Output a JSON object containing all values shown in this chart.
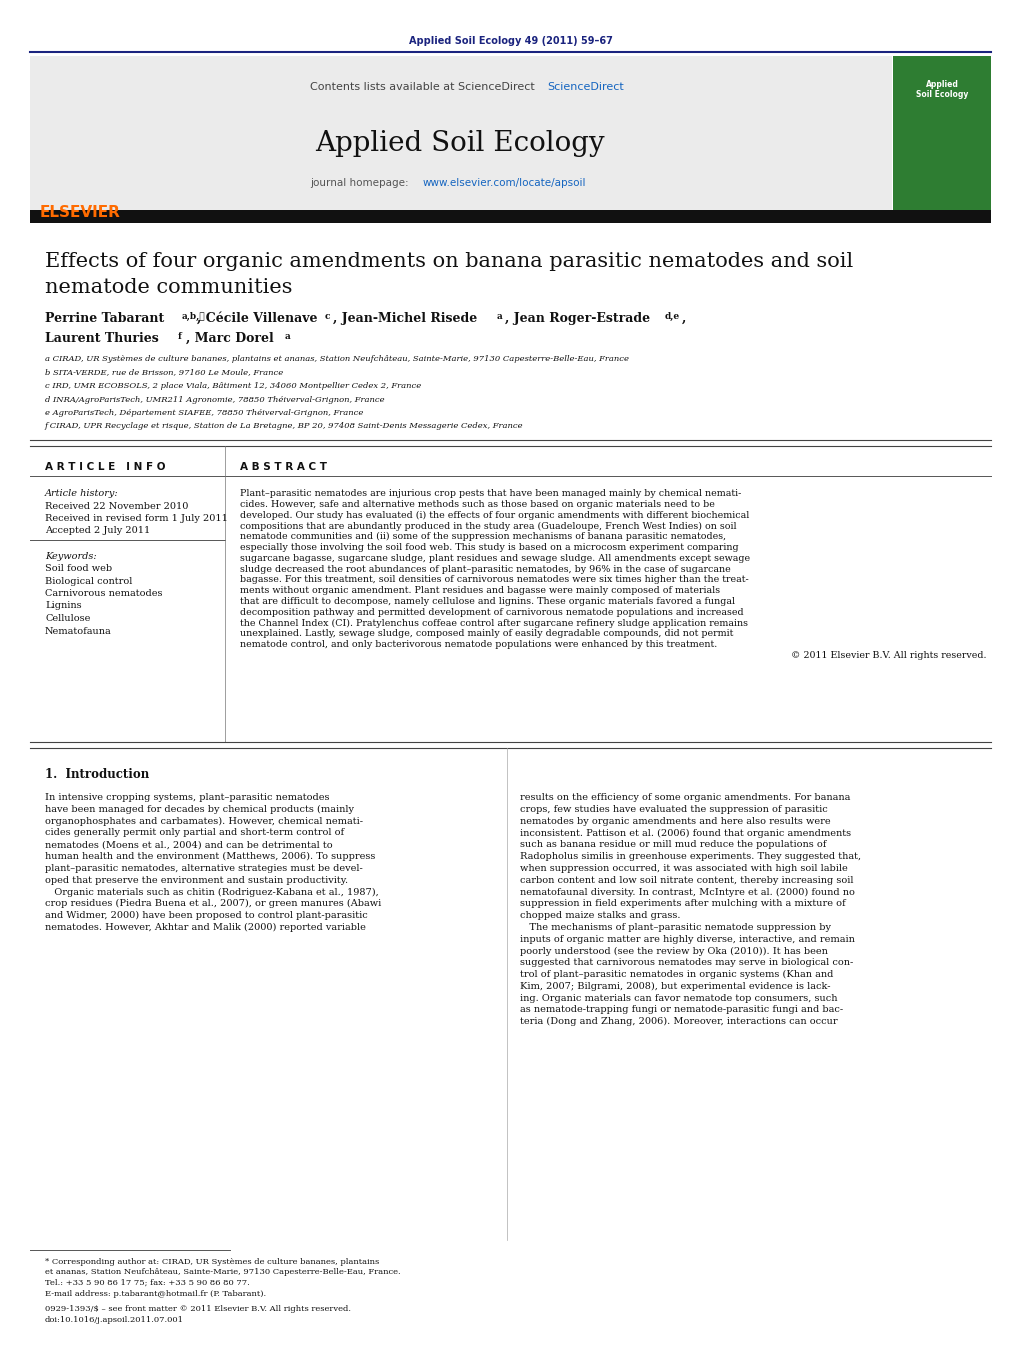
{
  "journal_ref": "Applied Soil Ecology 49 (2011) 59–67",
  "journal_name": "Applied Soil Ecology",
  "contents_text": "Contents lists available at ScienceDirect",
  "sciencedirect_text": "ScienceDirect",
  "homepage_label": "journal homepage: ",
  "homepage_url": "www.elsevier.com/locate/apsoil",
  "elsevier_color": "#FF6B00",
  "green_box_color": "#2E7D32",
  "affil_a": "a CIRAD, UR Systèmes de culture bananes, plantains et ananas, Station Neufchâteau, Sainte-Marie, 97130 Capesterre-Belle-Eau, France",
  "affil_b": "b SITA-VERDE, rue de Brisson, 97160 Le Moule, France",
  "affil_c": "c IRD, UMR ECOBSOLS, 2 place Viala, Bâtiment 12, 34060 Montpellier Cedex 2, France",
  "affil_d": "d INRA/AgroParisTech, UMR211 Agronomie, 78850 Théiverval-Grignon, France",
  "affil_e": "e AgroParisTech, Département SIAFEE, 78850 Théiverval-Grignon, France",
  "affil_f": "f CIRAD, UPR Recyclage et risque, Station de La Bretagne, BP 20, 97408 Saint-Denis Messagerie Cedex, France",
  "article_info_header": "A R T I C L E   I N F O",
  "abstract_header": "A B S T R A C T",
  "article_history_label": "Article history:",
  "received1": "Received 22 November 2010",
  "received2": "Received in revised form 1 July 2011",
  "accepted": "Accepted 2 July 2011",
  "keywords_label": "Keywords:",
  "keywords": [
    "Soil food web",
    "Biological control",
    "Carnivorous nematodes",
    "Lignins",
    "Cellulose",
    "Nematofauna"
  ],
  "abstract_lines": [
    "Plant–parasitic nematodes are injurious crop pests that have been managed mainly by chemical nemati-",
    "cides. However, safe and alternative methods such as those based on organic materials need to be",
    "developed. Our study has evaluated (i) the effects of four organic amendments with different biochemical",
    "compositions that are abundantly produced in the study area (Guadeloupe, French West Indies) on soil",
    "nematode communities and (ii) some of the suppression mechanisms of banana parasitic nematodes,",
    "especially those involving the soil food web. This study is based on a microcosm experiment comparing",
    "sugarcane bagasse, sugarcane sludge, plant residues and sewage sludge. All amendments except sewage",
    "sludge decreased the root abundances of plant–parasitic nematodes, by 96% in the case of sugarcane",
    "bagasse. For this treatment, soil densities of carnivorous nematodes were six times higher than the treat-",
    "ments without organic amendment. Plant residues and bagasse were mainly composed of materials",
    "that are difficult to decompose, namely cellulose and lignins. These organic materials favored a fungal",
    "decomposition pathway and permitted development of carnivorous nematode populations and increased",
    "the Channel Index (CI). Pratylenchus coffeae control after sugarcane refinery sludge application remains",
    "unexplained. Lastly, sewage sludge, composed mainly of easily degradable compounds, did not permit",
    "nematode control, and only bacterivorous nematode populations were enhanced by this treatment.",
    "© 2011 Elsevier B.V. All rights reserved."
  ],
  "intro_header": "1.  Introduction",
  "intro_col1_lines": [
    "In intensive cropping systems, plant–parasitic nematodes",
    "have been managed for decades by chemical products (mainly",
    "organophosphates and carbamates). However, chemical nemati-",
    "cides generally permit only partial and short-term control of",
    "nematodes (Moens et al., 2004) and can be detrimental to",
    "human health and the environment (Matthews, 2006). To suppress",
    "plant–parasitic nematodes, alternative strategies must be devel-",
    "oped that preserve the environment and sustain productivity.",
    "   Organic materials such as chitin (Rodriguez-Kabana et al., 1987),",
    "crop residues (Piedra Buena et al., 2007), or green manures (Abawi",
    "and Widmer, 2000) have been proposed to control plant-parasitic",
    "nematodes. However, Akhtar and Malik (2000) reported variable"
  ],
  "intro_col2_lines": [
    "results on the efficiency of some organic amendments. For banana",
    "crops, few studies have evaluated the suppression of parasitic",
    "nematodes by organic amendments and here also results were",
    "inconsistent. Pattison et al. (2006) found that organic amendments",
    "such as banana residue or mill mud reduce the populations of",
    "Radopholus similis in greenhouse experiments. They suggested that,",
    "when suppression occurred, it was associated with high soil labile",
    "carbon content and low soil nitrate content, thereby increasing soil",
    "nematofaunal diversity. In contrast, McIntyre et al. (2000) found no",
    "suppression in field experiments after mulching with a mixture of",
    "chopped maize stalks and grass.",
    "   The mechanisms of plant–parasitic nematode suppression by",
    "inputs of organic matter are highly diverse, interactive, and remain",
    "poorly understood (see the review by Oka (2010)). It has been",
    "suggested that carnivorous nematodes may serve in biological con-",
    "trol of plant–parasitic nematodes in organic systems (Khan and",
    "Kim, 2007; Bilgrami, 2008), but experimental evidence is lack-",
    "ing. Organic materials can favor nematode top consumers, such",
    "as nematode-trapping fungi or nematode-parasitic fungi and bac-",
    "teria (Dong and Zhang, 2006). Moreover, interactions can occur"
  ],
  "footnote_lines": [
    "* Corresponding author at: CIRAD, UR Systèmes de culture bananes, plantains",
    "et ananas, Station Neufchâteau, Sainte-Marie, 97130 Capesterre-Belle-Eau, France.",
    "Tel.: +33 5 90 86 17 75; fax: +33 5 90 86 80 77.",
    "E-mail address: p.tabarant@hotmail.fr (P. Tabarant)."
  ],
  "doi_line1": "0929-1393/$ – see front matter © 2011 Elsevier B.V. All rights reserved.",
  "doi_line2": "doi:10.1016/j.apsoil.2011.07.001",
  "bg_color": "#FFFFFF",
  "blue_color": "#1565C0",
  "dark_blue": "#1a237e"
}
